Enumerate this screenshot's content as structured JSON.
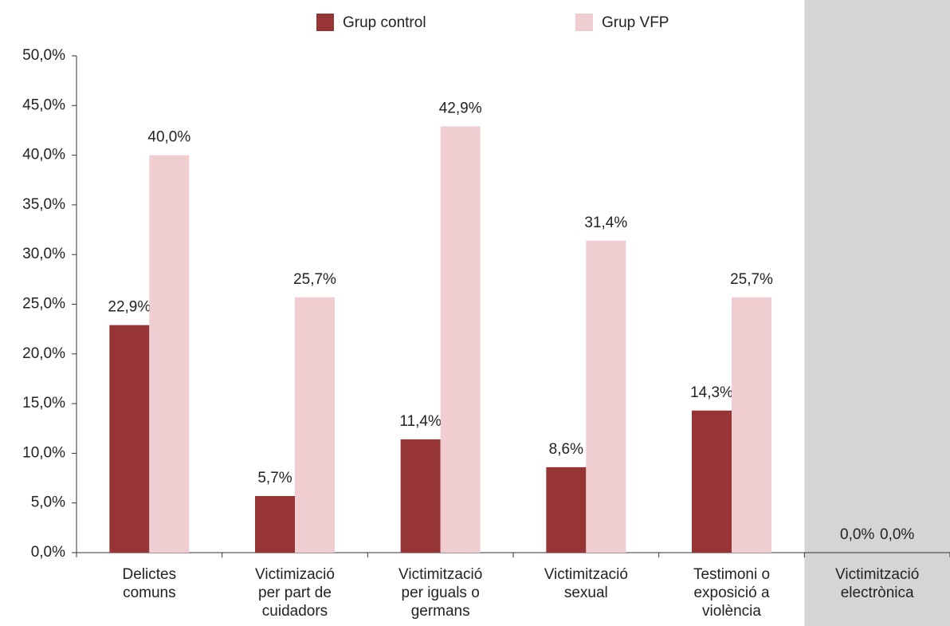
{
  "chart_data": {
    "type": "bar",
    "categories": [
      "Delictes\ncomuns",
      "Victimizació\nper part de\ncuidadors",
      "Victimització\nper iguals o\ngermans",
      "Victimització\nsexual",
      "Testimoni o\nexposició a\nviolència",
      "Victimització\nelectrònica"
    ],
    "series": [
      {
        "name": "Grup control",
        "color": "#973536",
        "values": [
          22.9,
          5.7,
          11.4,
          8.6,
          14.3,
          0
        ],
        "value_labels": [
          "22,9%",
          "5,7%",
          "11,4%",
          "8,6%",
          "14,3%",
          "0,0%"
        ]
      },
      {
        "name": "Grup VFP",
        "color": "#f0cdd0",
        "values": [
          40.0,
          25.7,
          42.9,
          31.4,
          25.7,
          0
        ],
        "value_labels": [
          "40,0%",
          "25,7%",
          "42,9%",
          "31,4%",
          "25,7%",
          "0,0%"
        ]
      }
    ],
    "ylim": [
      0,
      50
    ],
    "yticks": [
      {
        "value": 0,
        "label": "0,0%"
      },
      {
        "value": 5,
        "label": "5,0%"
      },
      {
        "value": 10,
        "label": "10,0%"
      },
      {
        "value": 15,
        "label": "15,0%"
      },
      {
        "value": 20,
        "label": "20,0%"
      },
      {
        "value": 25,
        "label": "25,0%"
      },
      {
        "value": 30,
        "label": "30,0%"
      },
      {
        "value": 35,
        "label": "35,0%"
      },
      {
        "value": 40,
        "label": "40,0%"
      },
      {
        "value": 45,
        "label": "45,0%"
      },
      {
        "value": 50,
        "label": "50,0%"
      }
    ],
    "grid": false,
    "legend": "top",
    "highlight": {
      "category": 5,
      "color": "#d4d5d7"
    }
  }
}
